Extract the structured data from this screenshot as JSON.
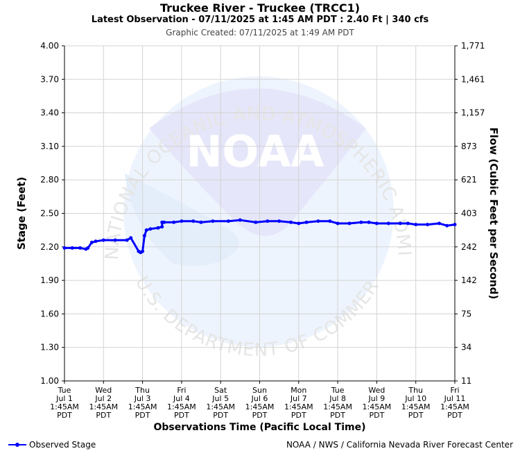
{
  "title": "Truckee River - Truckee (TRCC1)",
  "subtitle": "Latest Observation - 07/11/2025 at 1:45 AM PDT : 2.40 Ft | 340 cfs",
  "created": "Graphic Created: 07/11/2025 at 1:49 AM PDT",
  "watermark": {
    "logo_text": "NOAA",
    "ring_top": "NATIONAL OCEANIC AND ATMOSPHERIC ADMINISTRATION",
    "ring_bottom": "U.S. DEPARTMENT OF COMMERCE"
  },
  "legend_label": "Observed Stage",
  "credit": "NOAA / NWS / California Nevada River Forecast Center",
  "colors": {
    "series": "#0000ff",
    "grid": "#d3d3d3",
    "logo": "#e6e6fa"
  },
  "chart_data": {
    "type": "line",
    "xlabel": "Observations Time (Pacific Local Time)",
    "ylabel": "Stage (Feet)",
    "y2label": "Flow (Cubic Feet per Second)",
    "ylim": [
      1.0,
      4.0
    ],
    "yticks": [
      "1.00",
      "1.30",
      "1.60",
      "1.90",
      "2.20",
      "2.50",
      "2.80",
      "3.10",
      "3.40",
      "3.70",
      "4.00"
    ],
    "y2ticks": [
      "11",
      "34",
      "75",
      "142",
      "242",
      "403",
      "621",
      "873",
      "1,157",
      "1,461",
      "1,771"
    ],
    "xlim_days": [
      0,
      10
    ],
    "xticks": [
      [
        "Tue",
        "Jul 1",
        "1:45AM",
        "PDT"
      ],
      [
        "Wed",
        "Jul 2",
        "1:45AM",
        "PDT"
      ],
      [
        "Thu",
        "Jul 3",
        "1:45AM",
        "PDT"
      ],
      [
        "Fri",
        "Jul 4",
        "1:45AM",
        "PDT"
      ],
      [
        "Sat",
        "Jul 5",
        "1:45AM",
        "PDT"
      ],
      [
        "Sun",
        "Jul 6",
        "1:45AM",
        "PDT"
      ],
      [
        "Mon",
        "Jul 7",
        "1:45AM",
        "PDT"
      ],
      [
        "Tue",
        "Jul 8",
        "1:45AM",
        "PDT"
      ],
      [
        "Wed",
        "Jul 9",
        "1:45AM",
        "PDT"
      ],
      [
        "Thu",
        "Jul 10",
        "1:45AM",
        "PDT"
      ],
      [
        "Fri",
        "Jul 11",
        "1:45AM",
        "PDT"
      ]
    ],
    "grid": true,
    "legend_position": "bottom-left",
    "series": [
      {
        "name": "Observed Stage",
        "x": [
          0,
          0.2,
          0.4,
          0.55,
          0.6,
          0.7,
          0.8,
          1.0,
          1.3,
          1.6,
          1.7,
          1.9,
          1.95,
          2.0,
          2.05,
          2.1,
          2.2,
          2.4,
          2.5,
          2.5,
          2.55,
          2.8,
          3.0,
          3.3,
          3.5,
          3.8,
          4.2,
          4.5,
          4.9,
          5.2,
          5.5,
          5.8,
          6.0,
          6.2,
          6.5,
          6.8,
          7.0,
          7.3,
          7.6,
          7.8,
          8.0,
          8.3,
          8.6,
          8.8,
          9.0,
          9.3,
          9.6,
          9.8,
          10.0
        ],
        "y": [
          2.19,
          2.19,
          2.19,
          2.18,
          2.19,
          2.24,
          2.25,
          2.26,
          2.26,
          2.26,
          2.28,
          2.16,
          2.15,
          2.16,
          2.3,
          2.35,
          2.36,
          2.37,
          2.38,
          2.42,
          2.42,
          2.42,
          2.43,
          2.43,
          2.42,
          2.43,
          2.43,
          2.44,
          2.42,
          2.43,
          2.43,
          2.42,
          2.41,
          2.42,
          2.43,
          2.43,
          2.41,
          2.41,
          2.42,
          2.42,
          2.41,
          2.41,
          2.41,
          2.41,
          2.4,
          2.4,
          2.41,
          2.39,
          2.4
        ]
      }
    ]
  }
}
